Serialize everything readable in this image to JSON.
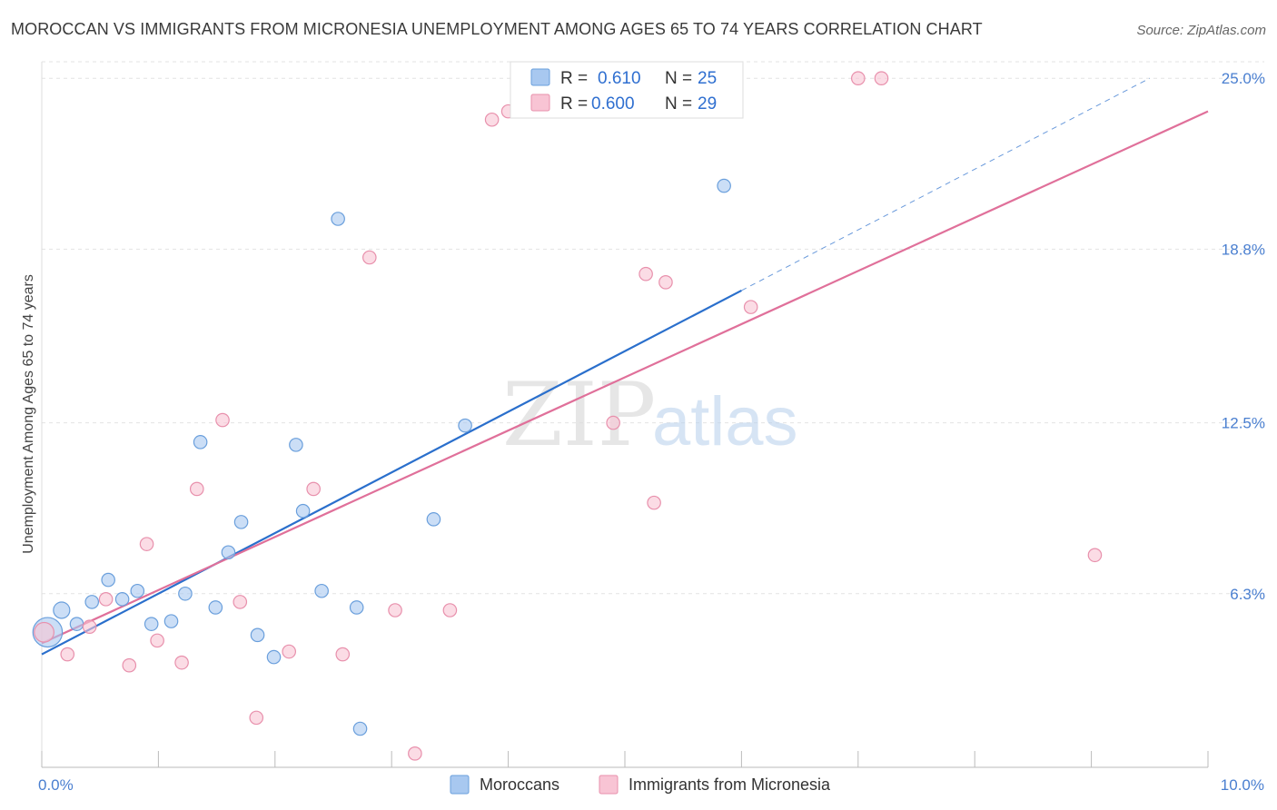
{
  "chart_data": {
    "type": "scatter",
    "title": "MOROCCAN VS IMMIGRANTS FROM MICRONESIA UNEMPLOYMENT AMONG AGES 65 TO 74 YEARS CORRELATION CHART",
    "source": "Source: ZipAtlas.com",
    "ylabel": "Unemployment Among Ages 65 to 74 years",
    "xlabel": "",
    "xlim": [
      0,
      10
    ],
    "ylim": [
      0,
      25.6
    ],
    "x_tick_labels": [
      "0.0%",
      "10.0%"
    ],
    "y_ticks": [
      6.3,
      12.5,
      18.8,
      25.0
    ],
    "y_tick_labels": [
      "6.3%",
      "12.5%",
      "18.8%",
      "25.0%"
    ],
    "watermark": {
      "zip": "ZIP",
      "atlas": "atlas"
    },
    "legend": [
      {
        "r_label": "R =",
        "r_value": "0.610",
        "n_label": "N =",
        "n_value": "25"
      },
      {
        "r_label": "R =",
        "r_value": "0.600",
        "n_label": "N =",
        "n_value": "29"
      }
    ],
    "series": [
      {
        "name": "Moroccans",
        "color": "#a8c8f0",
        "edge": "#6a9fdc",
        "line_color": "#2a6fcc",
        "trend": {
          "x0": 0.0,
          "y0": 4.1,
          "x1": 6.0,
          "y1": 17.3,
          "dash_x1": 9.5,
          "dash_y1": 25.0
        },
        "points": [
          [
            0.05,
            4.9,
            1.8
          ],
          [
            0.17,
            5.7,
            1.0
          ],
          [
            0.3,
            5.2,
            0.8
          ],
          [
            0.43,
            6.0,
            0.8
          ],
          [
            0.57,
            6.8,
            0.8
          ],
          [
            0.69,
            6.1,
            0.8
          ],
          [
            0.82,
            6.4,
            0.8
          ],
          [
            0.94,
            5.2,
            0.8
          ],
          [
            1.11,
            5.3,
            0.8
          ],
          [
            1.23,
            6.3,
            0.8
          ],
          [
            1.36,
            11.8,
            0.8
          ],
          [
            1.49,
            5.8,
            0.8
          ],
          [
            1.6,
            7.8,
            0.8
          ],
          [
            1.71,
            8.9,
            0.8
          ],
          [
            1.85,
            4.8,
            0.8
          ],
          [
            1.99,
            4.0,
            0.8
          ],
          [
            2.18,
            11.7,
            0.8
          ],
          [
            2.24,
            9.3,
            0.8
          ],
          [
            2.4,
            6.4,
            0.8
          ],
          [
            2.54,
            19.9,
            0.8
          ],
          [
            2.7,
            5.8,
            0.8
          ],
          [
            2.73,
            1.4,
            0.8
          ],
          [
            3.36,
            9.0,
            0.8
          ],
          [
            3.63,
            12.4,
            0.8
          ],
          [
            5.85,
            21.1,
            0.8
          ]
        ]
      },
      {
        "name": "Immigrants from Micronesia",
        "color": "#f8c4d4",
        "edge": "#e890ac",
        "line_color": "#e0709a",
        "trend": {
          "x0": 0.0,
          "y0": 4.5,
          "x1": 10.0,
          "y1": 23.8
        },
        "points": [
          [
            0.02,
            4.9,
            1.2
          ],
          [
            0.22,
            4.1,
            0.8
          ],
          [
            0.41,
            5.1,
            0.8
          ],
          [
            0.55,
            6.1,
            0.8
          ],
          [
            0.75,
            3.7,
            0.8
          ],
          [
            0.9,
            8.1,
            0.8
          ],
          [
            0.99,
            4.6,
            0.8
          ],
          [
            1.2,
            3.8,
            0.8
          ],
          [
            1.33,
            10.1,
            0.8
          ],
          [
            1.55,
            12.6,
            0.8
          ],
          [
            1.7,
            6.0,
            0.8
          ],
          [
            1.84,
            1.8,
            0.8
          ],
          [
            2.12,
            4.2,
            0.8
          ],
          [
            2.33,
            10.1,
            0.8
          ],
          [
            2.58,
            4.1,
            0.8
          ],
          [
            2.81,
            18.5,
            0.8
          ],
          [
            3.03,
            5.7,
            0.8
          ],
          [
            3.2,
            0.5,
            0.8
          ],
          [
            3.5,
            5.7,
            0.8
          ],
          [
            3.86,
            23.5,
            0.8
          ],
          [
            4.0,
            23.8,
            0.8
          ],
          [
            4.9,
            12.5,
            0.8
          ],
          [
            5.18,
            17.9,
            0.8
          ],
          [
            5.25,
            9.6,
            0.8
          ],
          [
            5.35,
            17.6,
            0.8
          ],
          [
            6.08,
            16.7,
            0.8
          ],
          [
            7.0,
            25.0,
            0.8
          ],
          [
            7.2,
            25.0,
            0.8
          ],
          [
            9.03,
            7.7,
            0.8
          ]
        ]
      }
    ]
  }
}
